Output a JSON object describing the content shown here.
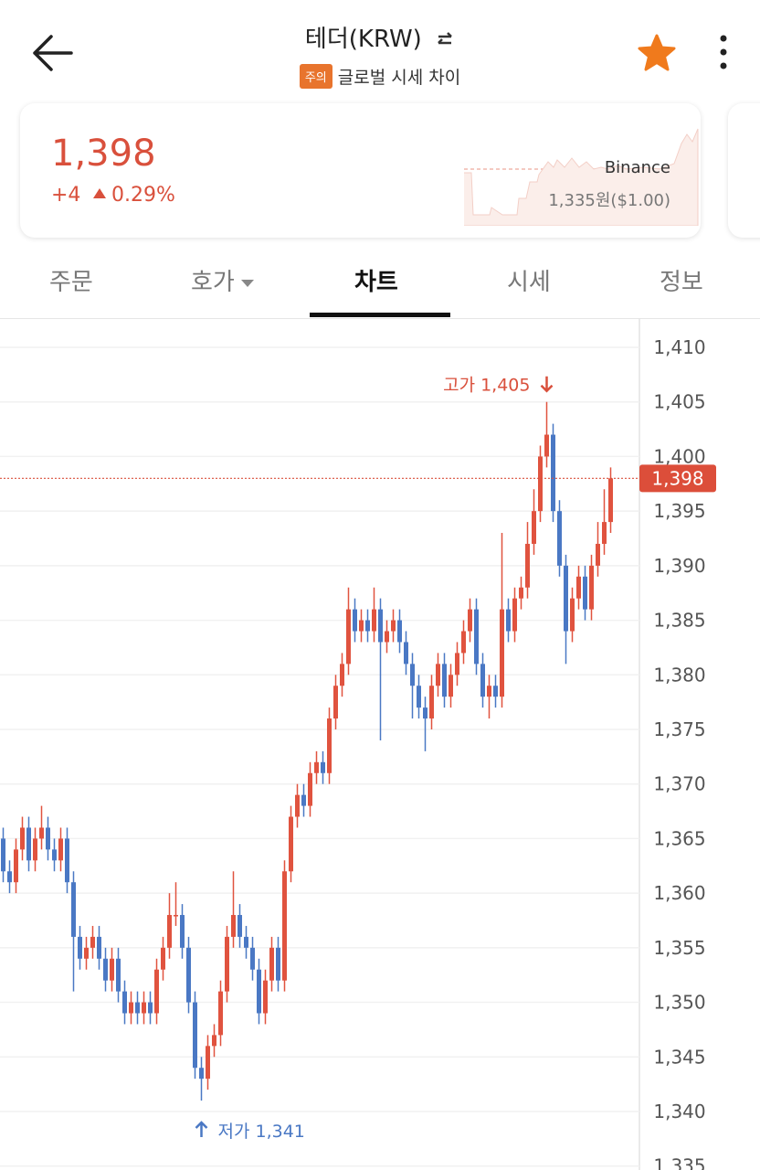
{
  "header": {
    "title": "테더(KRW)",
    "badge": "주의",
    "subtitle": "글로벌 시세 차이"
  },
  "summary": {
    "price": "1,398",
    "change": "+4",
    "change_rate": "0.29%",
    "exchange": "Binance",
    "reference_price": "1,335원($1.00)"
  },
  "tabs": [
    "주문",
    "호가",
    "차트",
    "시세",
    "정보"
  ],
  "chart_data": {
    "type": "candlestick",
    "up_color": "#e0533f",
    "down_color": "#4a78c4",
    "grid": true,
    "ylim": [
      1334.64,
      1412.68
    ],
    "yticks": [
      {
        "value": 1410,
        "label": "1,410"
      },
      {
        "value": 1405,
        "label": "1,405"
      },
      {
        "value": 1400,
        "label": "1,400"
      },
      {
        "value": 1395,
        "label": "1,395"
      },
      {
        "value": 1390,
        "label": "1,390"
      },
      {
        "value": 1385,
        "label": "1,385"
      },
      {
        "value": 1380,
        "label": "1,380"
      },
      {
        "value": 1375,
        "label": "1,375"
      },
      {
        "value": 1370,
        "label": "1,370"
      },
      {
        "value": 1365,
        "label": "1,365"
      },
      {
        "value": 1360,
        "label": "1,360"
      },
      {
        "value": 1355,
        "label": "1,355"
      },
      {
        "value": 1350,
        "label": "1,350"
      },
      {
        "value": 1345,
        "label": "1,345"
      },
      {
        "value": 1340,
        "label": "1,340"
      },
      {
        "value": 1335,
        "label": "1,335"
      }
    ],
    "last_price": {
      "value": 1398,
      "label": "1,398"
    },
    "high_annotation": "고가 1,405",
    "low_annotation": "저가 1,341",
    "open": [
      1365,
      1362,
      1361,
      1364,
      1366,
      1363,
      1365,
      1366,
      1364,
      1363,
      1365,
      1361,
      1356,
      1354,
      1355,
      1356,
      1354,
      1352,
      1354,
      1351,
      1349,
      1350,
      1349,
      1350,
      1349,
      1353,
      1355,
      1358,
      1358,
      1355,
      1350,
      1344,
      1343,
      1346,
      1347,
      1351,
      1356,
      1358,
      1356,
      1355,
      1353,
      1349,
      1352,
      1355,
      1352,
      1362,
      1367,
      1369,
      1368,
      1371,
      1372,
      1371,
      1376,
      1379,
      1381,
      1386,
      1384,
      1385,
      1384,
      1386,
      1383,
      1384,
      1385,
      1383,
      1381,
      1379,
      1377,
      1376,
      1379,
      1381,
      1378,
      1380,
      1382,
      1384,
      1386,
      1381,
      1378,
      1379,
      1378,
      1386,
      1384,
      1387,
      1388,
      1392,
      1395,
      1400,
      1402,
      1395,
      1390,
      1384,
      1387,
      1389,
      1386,
      1390,
      1392,
      1394
    ],
    "high": [
      1366,
      1363,
      1365,
      1367,
      1367,
      1366,
      1368,
      1367,
      1365,
      1366,
      1366,
      1362,
      1357,
      1356,
      1357,
      1357,
      1355,
      1355,
      1355,
      1352,
      1351,
      1351,
      1351,
      1351,
      1354,
      1356,
      1360,
      1361,
      1359,
      1356,
      1351,
      1345,
      1347,
      1348,
      1352,
      1357,
      1362,
      1359,
      1357,
      1356,
      1354,
      1353,
      1356,
      1356,
      1363,
      1368,
      1370,
      1370,
      1372,
      1373,
      1373,
      1377,
      1380,
      1382,
      1388,
      1387,
      1386,
      1386,
      1388,
      1387,
      1385,
      1386,
      1386,
      1384,
      1382,
      1380,
      1378,
      1380,
      1382,
      1382,
      1381,
      1383,
      1385,
      1387,
      1387,
      1382,
      1380,
      1380,
      1393,
      1387,
      1388,
      1389,
      1394,
      1397,
      1401,
      1405,
      1403,
      1396,
      1391,
      1388,
      1390,
      1390,
      1391,
      1394,
      1397,
      1399
    ],
    "low": [
      1361,
      1360,
      1360,
      1363,
      1362,
      1362,
      1364,
      1363,
      1362,
      1362,
      1360,
      1351,
      1353,
      1353,
      1354,
      1353,
      1351,
      1351,
      1350,
      1348,
      1348,
      1348,
      1348,
      1348,
      1348,
      1352,
      1354,
      1357,
      1354,
      1349,
      1343,
      1341,
      1342,
      1345,
      1346,
      1350,
      1355,
      1355,
      1354,
      1352,
      1348,
      1348,
      1351,
      1351,
      1351,
      1361,
      1366,
      1367,
      1367,
      1370,
      1370,
      1370,
      1375,
      1378,
      1380,
      1383,
      1383,
      1383,
      1383,
      1374,
      1382,
      1383,
      1382,
      1380,
      1376,
      1376,
      1373,
      1375,
      1378,
      1377,
      1377,
      1379,
      1381,
      1383,
      1380,
      1377,
      1376,
      1377,
      1377,
      1383,
      1383,
      1386,
      1387,
      1391,
      1394,
      1399,
      1394,
      1389,
      1381,
      1383,
      1386,
      1385,
      1385,
      1389,
      1391,
      1393
    ],
    "close": [
      1362,
      1361,
      1364,
      1366,
      1363,
      1365,
      1366,
      1364,
      1363,
      1365,
      1361,
      1356,
      1354,
      1355,
      1356,
      1354,
      1352,
      1354,
      1351,
      1349,
      1350,
      1349,
      1350,
      1349,
      1353,
      1355,
      1358,
      1358,
      1355,
      1350,
      1344,
      1343,
      1346,
      1347,
      1351,
      1356,
      1358,
      1356,
      1355,
      1353,
      1349,
      1352,
      1355,
      1352,
      1362,
      1367,
      1369,
      1368,
      1371,
      1372,
      1371,
      1376,
      1379,
      1381,
      1386,
      1384,
      1385,
      1384,
      1386,
      1383,
      1384,
      1385,
      1383,
      1381,
      1379,
      1377,
      1376,
      1379,
      1381,
      1378,
      1380,
      1382,
      1384,
      1386,
      1381,
      1378,
      1379,
      1378,
      1386,
      1384,
      1387,
      1388,
      1392,
      1395,
      1400,
      1402,
      1395,
      1390,
      1384,
      1387,
      1389,
      1386,
      1390,
      1392,
      1394,
      1398
    ]
  }
}
